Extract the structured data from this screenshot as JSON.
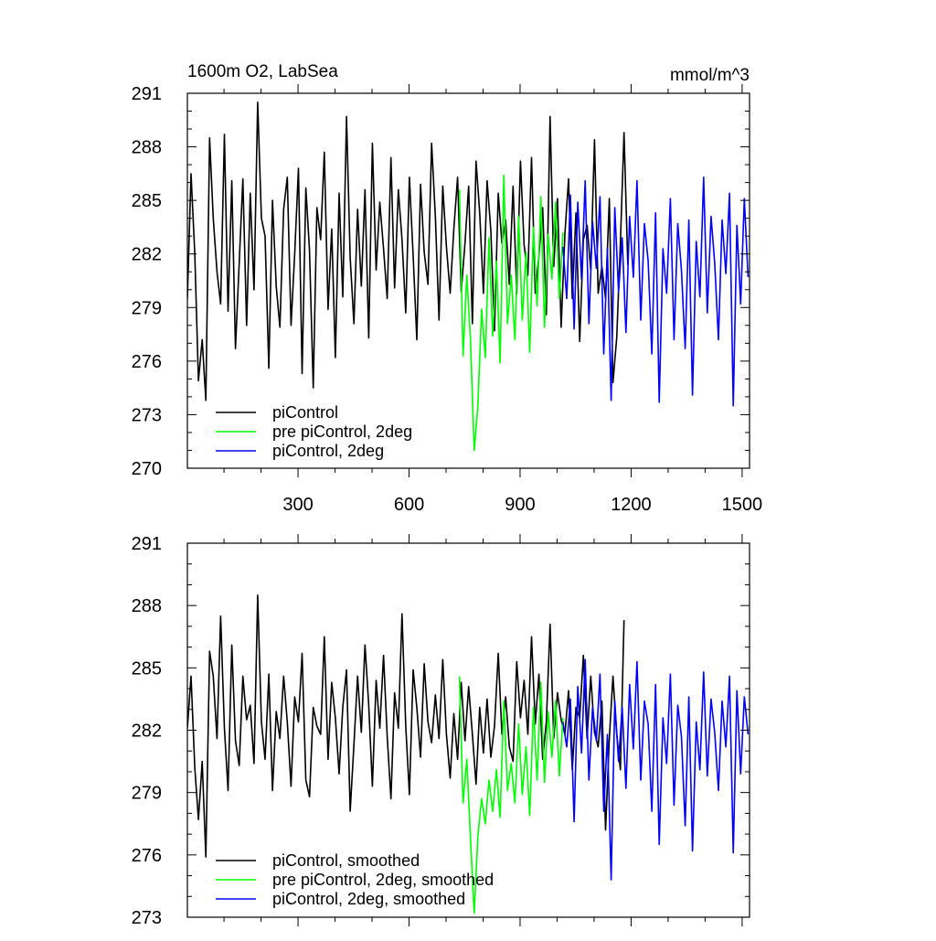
{
  "chart_data": [
    {
      "type": "line",
      "title": "1600m O2, LabSea",
      "units": "mmol/m^3",
      "xlabel": "",
      "ylabel": "",
      "xlim": [
        1,
        1520
      ],
      "ylim": [
        270,
        291
      ],
      "xticks": [
        300,
        600,
        900,
        1200,
        1500
      ],
      "yticks": [
        270,
        273,
        276,
        279,
        282,
        285,
        288,
        291
      ],
      "show_x_tick_labels": true,
      "grid": false,
      "legend_position": "bottom-left",
      "series": [
        {
          "name": "piControl",
          "color": "#000000",
          "x": [
            1,
            11,
            21,
            31,
            41,
            51,
            61,
            71,
            81,
            91,
            101,
            111,
            121,
            131,
            141,
            151,
            161,
            171,
            181,
            191,
            201,
            211,
            221,
            231,
            241,
            251,
            261,
            271,
            281,
            291,
            301,
            311,
            321,
            331,
            341,
            351,
            361,
            371,
            381,
            391,
            401,
            411,
            421,
            431,
            441,
            451,
            461,
            471,
            481,
            491,
            501,
            511,
            521,
            531,
            541,
            551,
            561,
            571,
            581,
            591,
            601,
            611,
            621,
            631,
            641,
            651,
            661,
            671,
            681,
            691,
            701,
            711,
            721,
            731,
            741,
            751,
            761,
            771,
            781,
            791,
            801,
            811,
            821,
            831,
            841,
            851,
            861,
            871,
            881,
            891,
            901,
            911,
            921,
            931,
            941,
            951,
            961,
            971,
            981,
            991,
            1001,
            1011,
            1021,
            1031,
            1041,
            1051,
            1061,
            1071,
            1081,
            1091,
            1101,
            1111,
            1121,
            1131,
            1141,
            1151,
            1161,
            1171,
            1181,
            1191
          ],
          "values": [
            279.5,
            286.5,
            282,
            274.9,
            277.2,
            273.8,
            288.5,
            284,
            281,
            279.2,
            288.7,
            278.8,
            286.1,
            276.7,
            281.5,
            286.2,
            278,
            285.4,
            280,
            290.5,
            284,
            283,
            275.6,
            285,
            280.2,
            277.9,
            284.5,
            286.3,
            278,
            282,
            286.8,
            275.3,
            285.7,
            282.2,
            274.5,
            284.6,
            282.8,
            287.7,
            278.9,
            283.4,
            276.2,
            285.4,
            279.6,
            289.7,
            281.8,
            278.1,
            284.5,
            280.2,
            285.6,
            277.3,
            288.2,
            281.1,
            284.9,
            282.3,
            279.5,
            287.4,
            280.1,
            285.6,
            282.8,
            278.7,
            286.3,
            281.9,
            277.2,
            285.9,
            282.1,
            280.3,
            288.2,
            284.1,
            278.3,
            285.8,
            282.4,
            279.8,
            283.4,
            286.3,
            279.9,
            282.6,
            285.8,
            278.1,
            287.2,
            284.3,
            279.8,
            286.1,
            283.3,
            277.7,
            285.4,
            282.6,
            283.9,
            280.3,
            285.8,
            279.8,
            287.2,
            282.5,
            280.8,
            287.4,
            279.8,
            281.9,
            284.6,
            278.6,
            289.7,
            281.3,
            285.1,
            277.9,
            283.1,
            286.2,
            279.5,
            284.3,
            277.1,
            282.8,
            283.6,
            281.1,
            288.4,
            279.8,
            281.3,
            279.5,
            285.1,
            274.8,
            277.3,
            282.6,
            288.8,
            281.4
          ]
        },
        {
          "name": "pre piControl, 2deg",
          "color": "#00ff00",
          "x": [
            736,
            746,
            756,
            766,
            776,
            786,
            796,
            806,
            816,
            826,
            836,
            846,
            856,
            866,
            876,
            886,
            896,
            906,
            916,
            926,
            936,
            946,
            956,
            966,
            976,
            986,
            996,
            1006,
            1016
          ],
          "values": [
            285.6,
            276.3,
            280.8,
            277.2,
            271,
            273.5,
            278.9,
            276.2,
            282.9,
            277.4,
            281.6,
            275.9,
            286.4,
            278.1,
            280.8,
            277.2,
            284.1,
            278.3,
            282.1,
            276.5,
            283.5,
            279.1,
            285.2,
            277.9,
            283.1,
            280.6,
            284.9,
            279.5,
            283.2
          ]
        },
        {
          "name": "piControl, 2deg",
          "color": "#0000ff",
          "x": [
            1016,
            1026,
            1036,
            1046,
            1056,
            1066,
            1076,
            1086,
            1096,
            1106,
            1116,
            1126,
            1136,
            1146,
            1156,
            1166,
            1176,
            1186,
            1196,
            1206,
            1216,
            1226,
            1236,
            1246,
            1256,
            1266,
            1276,
            1286,
            1296,
            1306,
            1316,
            1326,
            1336,
            1346,
            1356,
            1366,
            1376,
            1386,
            1396,
            1406,
            1416,
            1426,
            1436,
            1446,
            1456,
            1466,
            1476,
            1486,
            1496,
            1506,
            1516
          ],
          "values": [
            282.4,
            279.5,
            285.3,
            277.8,
            284.9,
            280.6,
            286.1,
            278.1,
            283.8,
            281.2,
            285.2,
            276.4,
            282.3,
            273.8,
            284.6,
            279.9,
            282.9,
            277.6,
            284.1,
            280.7,
            286.1,
            278.3,
            283.7,
            281.6,
            276.4,
            284.3,
            273.7,
            282.3,
            279.8,
            285.1,
            277.2,
            283.7,
            281.1,
            276.7,
            283.9,
            274.1,
            282.7,
            279.6,
            286.3,
            278.7,
            284.1,
            281.5,
            277.2,
            283.9,
            280.9,
            285.4,
            273.5,
            283.6,
            279.2,
            285.1,
            280.7
          ]
        }
      ]
    },
    {
      "type": "line",
      "title": "",
      "units": "",
      "xlabel": "",
      "ylabel": "",
      "xlim": [
        1,
        1520
      ],
      "ylim": [
        273,
        291
      ],
      "xticks": [
        300,
        600,
        900,
        1200,
        1500
      ],
      "yticks": [
        273,
        276,
        279,
        282,
        285,
        288,
        291
      ],
      "show_x_tick_labels": false,
      "grid": false,
      "legend_position": "bottom-left",
      "series": [
        {
          "name": "piControl, smoothed",
          "color": "#000000",
          "x": [
            1,
            11,
            21,
            31,
            41,
            51,
            61,
            71,
            81,
            91,
            101,
            111,
            121,
            131,
            141,
            151,
            161,
            171,
            181,
            191,
            201,
            211,
            221,
            231,
            241,
            251,
            261,
            271,
            281,
            291,
            301,
            311,
            321,
            331,
            341,
            351,
            361,
            371,
            381,
            391,
            401,
            411,
            421,
            431,
            441,
            451,
            461,
            471,
            481,
            491,
            501,
            511,
            521,
            531,
            541,
            551,
            561,
            571,
            581,
            591,
            601,
            611,
            621,
            631,
            641,
            651,
            661,
            671,
            681,
            691,
            701,
            711,
            721,
            731,
            741,
            751,
            761,
            771,
            781,
            791,
            801,
            811,
            821,
            831,
            841,
            851,
            861,
            871,
            881,
            891,
            901,
            911,
            921,
            931,
            941,
            951,
            961,
            971,
            981,
            991,
            1001,
            1011,
            1021,
            1031,
            1041,
            1051,
            1061,
            1071,
            1081,
            1091,
            1101,
            1111,
            1121,
            1131,
            1141,
            1151,
            1161,
            1171,
            1181
          ],
          "values": [
            282.1,
            284.6,
            280.2,
            277.7,
            280.5,
            275.9,
            285.8,
            284.6,
            281.6,
            287.5,
            282.1,
            279.1,
            286.1,
            281.5,
            280.3,
            284.6,
            282.5,
            283.2,
            280.4,
            288.5,
            282.4,
            280.6,
            284.7,
            279.1,
            282.9,
            281.6,
            284.6,
            282.4,
            279.3,
            283.6,
            282.4,
            285.7,
            279.6,
            278.8,
            283.1,
            282.2,
            281.8,
            286.5,
            280.6,
            284.3,
            282.6,
            279.9,
            283.1,
            284.9,
            278.1,
            281.3,
            284.6,
            281.9,
            286.1,
            283.2,
            279.3,
            284.4,
            282.1,
            285.6,
            281.7,
            278.7,
            283.8,
            282.1,
            287.6,
            282.2,
            278.9,
            284.9,
            283.1,
            280.7,
            285.2,
            282.4,
            281.4,
            283.7,
            281.6,
            285.4,
            281.8,
            279.7,
            282.8,
            280.6,
            284.3,
            281.5,
            284.1,
            281.8,
            279.4,
            283.1,
            280.9,
            283.5,
            280.7,
            282.2,
            285.7,
            281.8,
            283.6,
            281.2,
            280.5,
            285.3,
            282.6,
            284.4,
            281.8,
            286.5,
            282.3,
            284.7,
            280.6,
            282.4,
            287.1,
            281.6,
            283.8,
            282.5,
            281.8,
            283.9,
            280.1,
            283.1,
            282.6,
            285.6,
            281.6,
            284.6,
            281.9,
            281.2,
            283.4,
            277.2,
            281.6,
            284.6,
            281.8,
            280.1,
            287.3
          ]
        },
        {
          "name": "pre piControl, 2deg, smoothed",
          "color": "#00ff00",
          "x": [
            736,
            746,
            756,
            766,
            776,
            786,
            796,
            806,
            816,
            826,
            836,
            846,
            856,
            866,
            876,
            886,
            896,
            906,
            916,
            926,
            936,
            946,
            956,
            966,
            976,
            986,
            996,
            1006,
            1016
          ],
          "values": [
            284.6,
            278.5,
            280.6,
            276.8,
            273.2,
            276.9,
            278.7,
            277.5,
            279.6,
            278.1,
            280.1,
            277.8,
            283.4,
            279.1,
            280.4,
            278.5,
            282.3,
            278.9,
            281.2,
            277.9,
            283.1,
            279.6,
            284.3,
            279.5,
            282.9,
            280.7,
            283.4,
            279.8,
            282.6
          ]
        },
        {
          "name": "piControl, 2deg, smoothed",
          "color": "#0000ff",
          "x": [
            1016,
            1026,
            1036,
            1046,
            1056,
            1066,
            1076,
            1086,
            1096,
            1106,
            1116,
            1126,
            1136,
            1146,
            1156,
            1166,
            1176,
            1186,
            1196,
            1206,
            1216,
            1226,
            1236,
            1246,
            1256,
            1266,
            1276,
            1286,
            1296,
            1306,
            1316,
            1326,
            1336,
            1346,
            1356,
            1366,
            1376,
            1386,
            1396,
            1406,
            1416,
            1426,
            1436,
            1446,
            1456,
            1466,
            1476,
            1486,
            1496,
            1506,
            1516
          ],
          "values": [
            282.4,
            281.2,
            283.5,
            277.6,
            284.1,
            280.9,
            285.4,
            279.6,
            283.1,
            281.5,
            284.7,
            278.1,
            281.8,
            274.8,
            283.4,
            280.5,
            283.1,
            279.2,
            284.2,
            281.1,
            285.3,
            279.6,
            283.4,
            282.3,
            278.1,
            284.2,
            276.5,
            282.6,
            280.4,
            284.7,
            278.4,
            283.2,
            281.7,
            277.4,
            283.6,
            276.2,
            282.4,
            280.1,
            284.8,
            279.8,
            283.5,
            281.9,
            279.1,
            283.4,
            281.2,
            284.6,
            276.1,
            283.9,
            279.9,
            283.6,
            281.8
          ]
        }
      ]
    }
  ]
}
